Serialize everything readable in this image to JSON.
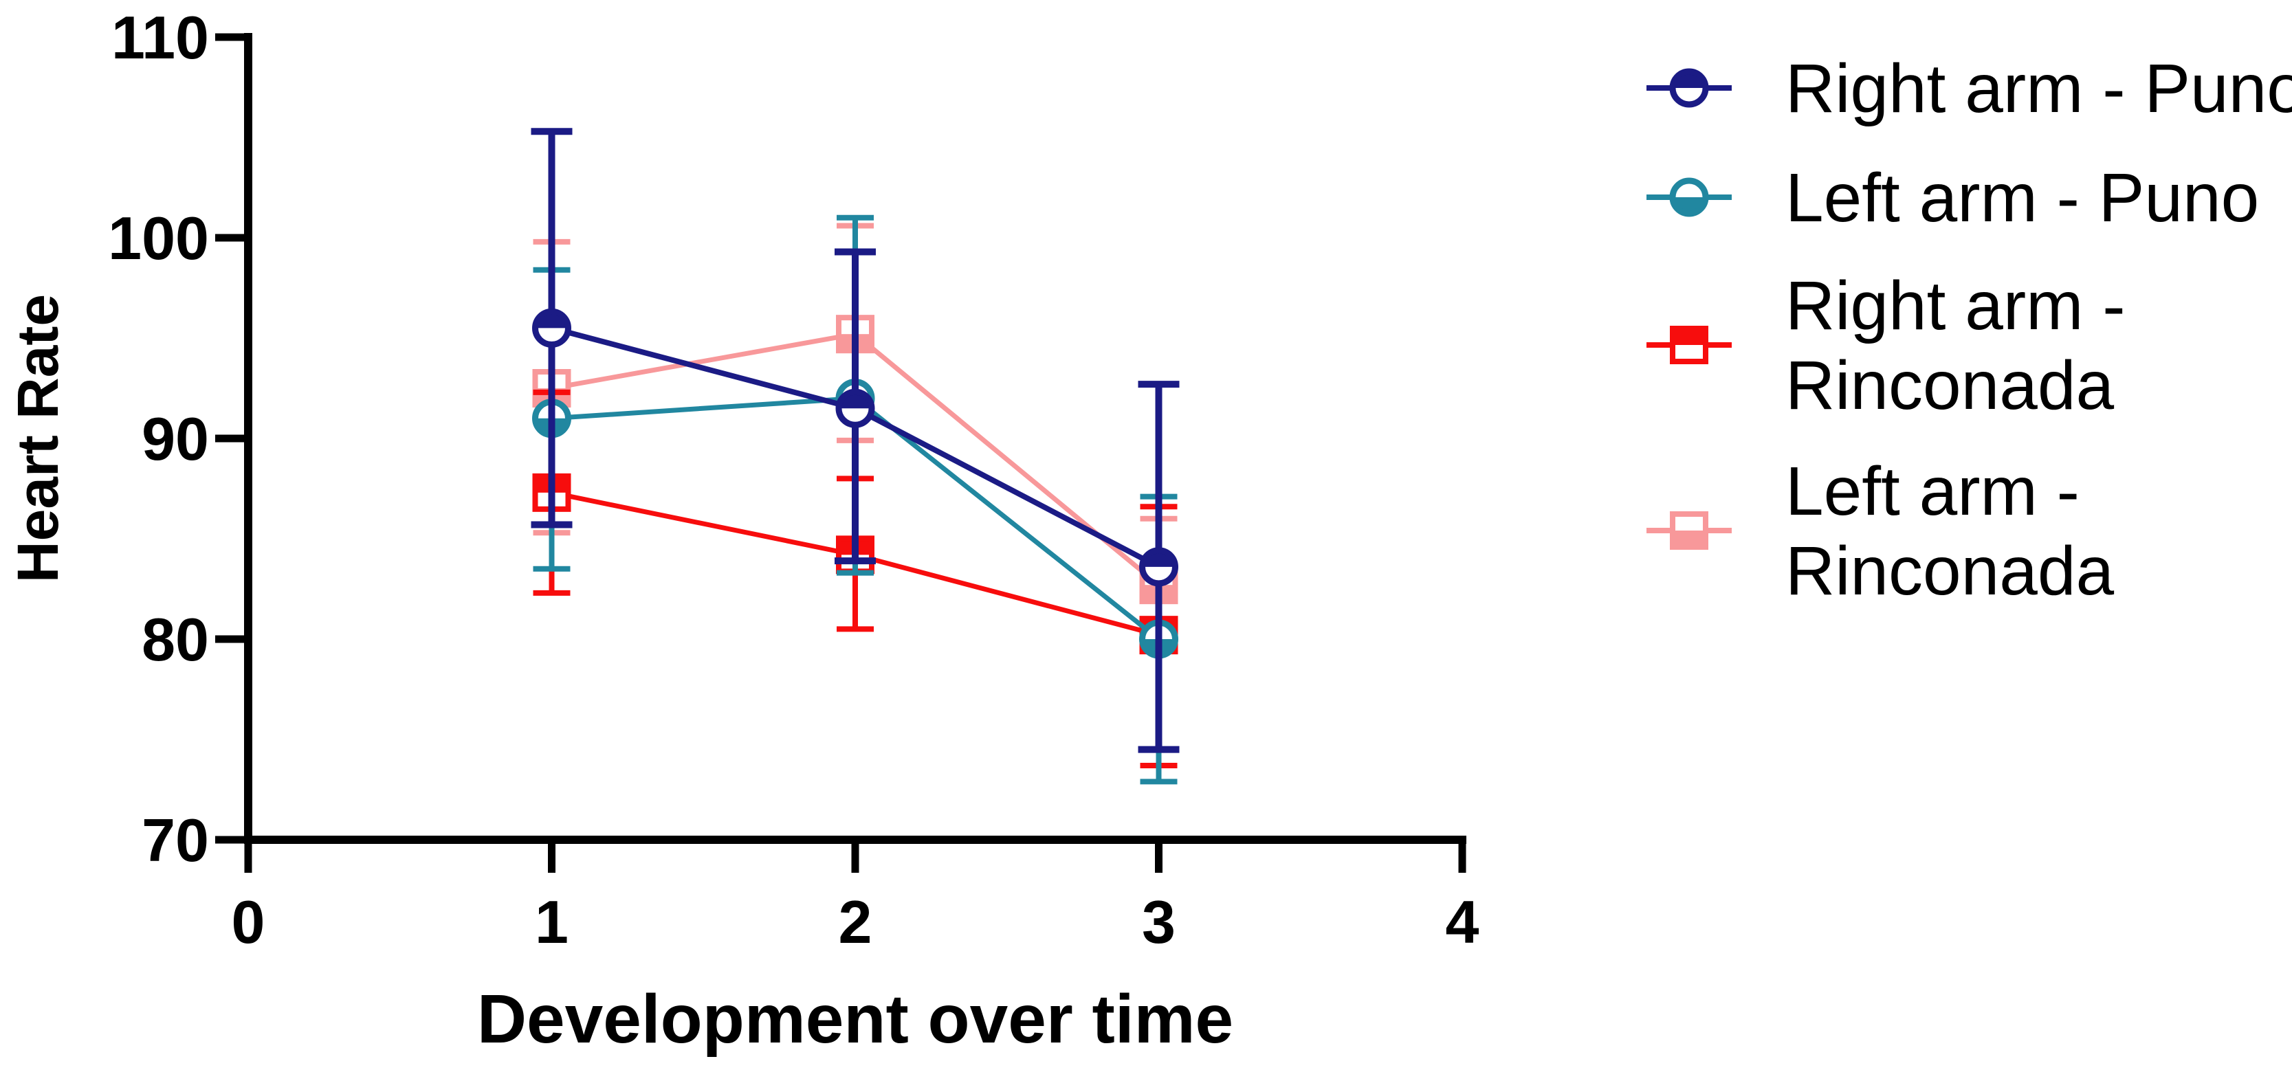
{
  "chart_data": {
    "type": "line",
    "title": "",
    "xlabel": "Development over time",
    "ylabel": "Heart Rate",
    "x": [
      1,
      2,
      3
    ],
    "xlim": [
      0,
      4
    ],
    "ylim": [
      70,
      110
    ],
    "xticks": [
      "0",
      "1",
      "2",
      "3",
      "4"
    ],
    "yticks": [
      "70",
      "80",
      "90",
      "100",
      "110"
    ],
    "grid": false,
    "legend_position": "right-outside",
    "background_color": "#ffffff",
    "axis_color": "#000000",
    "series": [
      {
        "name": "Right arm - Puno",
        "legend_lines": [
          "Right arm - Puno"
        ],
        "color": "#1b1b85",
        "marker": "circle",
        "half_filled": "top",
        "values": [
          95.5,
          91.5,
          83.6
        ],
        "error_upper": [
          105.3,
          99.3,
          92.7
        ],
        "error_lower": [
          85.7,
          83.9,
          74.5
        ]
      },
      {
        "name": "Left arm - Puno",
        "legend_lines": [
          "Left arm - Puno"
        ],
        "color": "#2187a0",
        "marker": "circle",
        "half_filled": "bottom",
        "values": [
          91.0,
          92.0,
          80.0
        ],
        "error_upper": [
          98.4,
          101.0,
          87.1
        ],
        "error_lower": [
          83.5,
          83.3,
          72.9
        ]
      },
      {
        "name": "Right arm - Rinconada",
        "legend_lines": [
          "Right arm -",
          "Rinconada"
        ],
        "color": "#f70d0d",
        "marker": "square",
        "half_filled": "top",
        "values": [
          87.3,
          84.2,
          80.2
        ],
        "error_upper": [
          92.3,
          88.0,
          86.6
        ],
        "error_lower": [
          82.3,
          80.5,
          73.7
        ]
      },
      {
        "name": "Left arm - Rinconada",
        "legend_lines": [
          "Left arm -",
          "Rinconada"
        ],
        "color": "#f8989a",
        "marker": "square",
        "half_filled": "bottom",
        "values": [
          92.5,
          95.2,
          82.7
        ],
        "error_upper": [
          99.8,
          100.6,
          86.0
        ],
        "error_lower": [
          85.3,
          89.9,
          79.4
        ]
      }
    ],
    "draw_order": [
      3,
      2,
      1,
      0
    ]
  }
}
